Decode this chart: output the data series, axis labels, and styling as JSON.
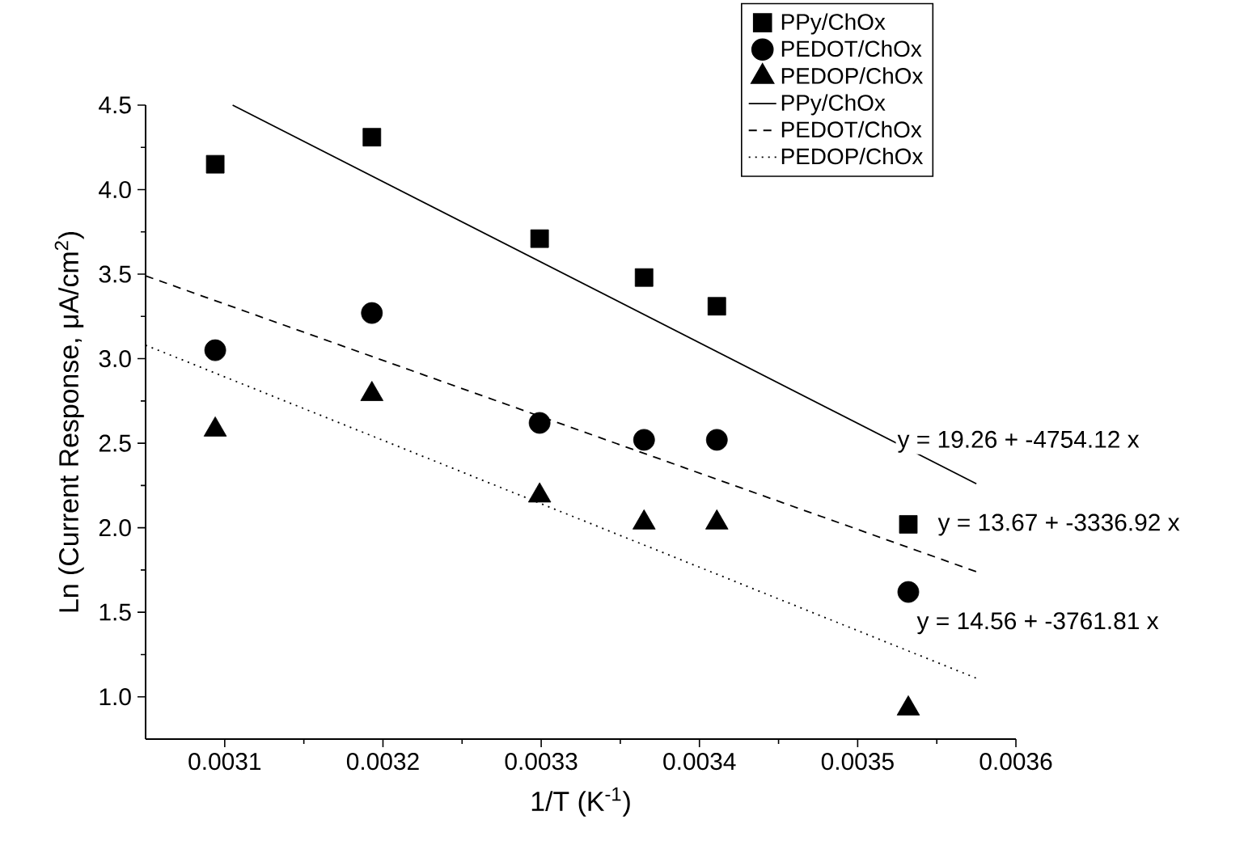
{
  "chart_data": {
    "type": "scatter",
    "xlabel": "1/T (K$^{-1}$)",
    "ylabel": "Ln (Current Response, μA/cm$^{2}$)",
    "xlim": [
      0.00305,
      0.0036
    ],
    "ylim": [
      0.75,
      4.5
    ],
    "xticks": [
      0.0031,
      0.0032,
      0.0033,
      0.0034,
      0.0035,
      0.0036
    ],
    "yticks": [
      {
        "value": 1,
        "label": "1.0"
      },
      {
        "value": 1.5,
        "label": "1.5"
      },
      {
        "value": 2,
        "label": "2.0"
      },
      {
        "value": 2.5,
        "label": "2.5"
      },
      {
        "value": 3,
        "label": "3.0"
      },
      {
        "value": 3.5,
        "label": "3.5"
      },
      {
        "value": 4,
        "label": "4.0"
      },
      {
        "value": 4.5,
        "label": "4.5"
      }
    ],
    "x": [
      0.003094,
      0.003193,
      0.003299,
      0.003365,
      0.003411,
      0.003532
    ],
    "legend": "top right",
    "grid": false,
    "series": [
      {
        "name": "PPy/ChOx",
        "marker": "square",
        "color": "#000000",
        "values": [
          4.15,
          4.31,
          3.71,
          3.48,
          3.31,
          2.02
        ]
      },
      {
        "name": "PEDOT/ChOx",
        "marker": "circle",
        "color": "#000000",
        "values": [
          3.05,
          3.27,
          2.62,
          2.52,
          2.52,
          1.62
        ]
      },
      {
        "name": "PEDOP/ChOx",
        "marker": "triangle",
        "color": "#000000",
        "values": [
          2.58,
          2.79,
          2.19,
          2.03,
          2.03,
          0.93
        ]
      },
      {
        "name": "PPy/ChOx",
        "type": "line",
        "marker": "none",
        "line_style": "solid",
        "color": "#000000",
        "x": [
          0.003105,
          0.003575
        ],
        "values": [
          4.5,
          2.26
        ]
      },
      {
        "name": "PEDOT/ChOx",
        "type": "line",
        "marker": "none",
        "line_style": "dashed",
        "color": "#000000",
        "x": [
          0.00305,
          0.003575
        ],
        "values": [
          3.49,
          1.74
        ]
      },
      {
        "name": "PEDOP/ChOx",
        "type": "line",
        "marker": "none",
        "line_style": "dotted",
        "color": "#000000",
        "x": [
          0.00305,
          0.003575
        ],
        "values": [
          3.08,
          1.11
        ]
      }
    ],
    "annotations": [
      "y = 19.26 + -4754.12 x",
      "y = 13.67 + -3336.92 x",
      "y = 14.56 + -3761.81 x"
    ]
  }
}
